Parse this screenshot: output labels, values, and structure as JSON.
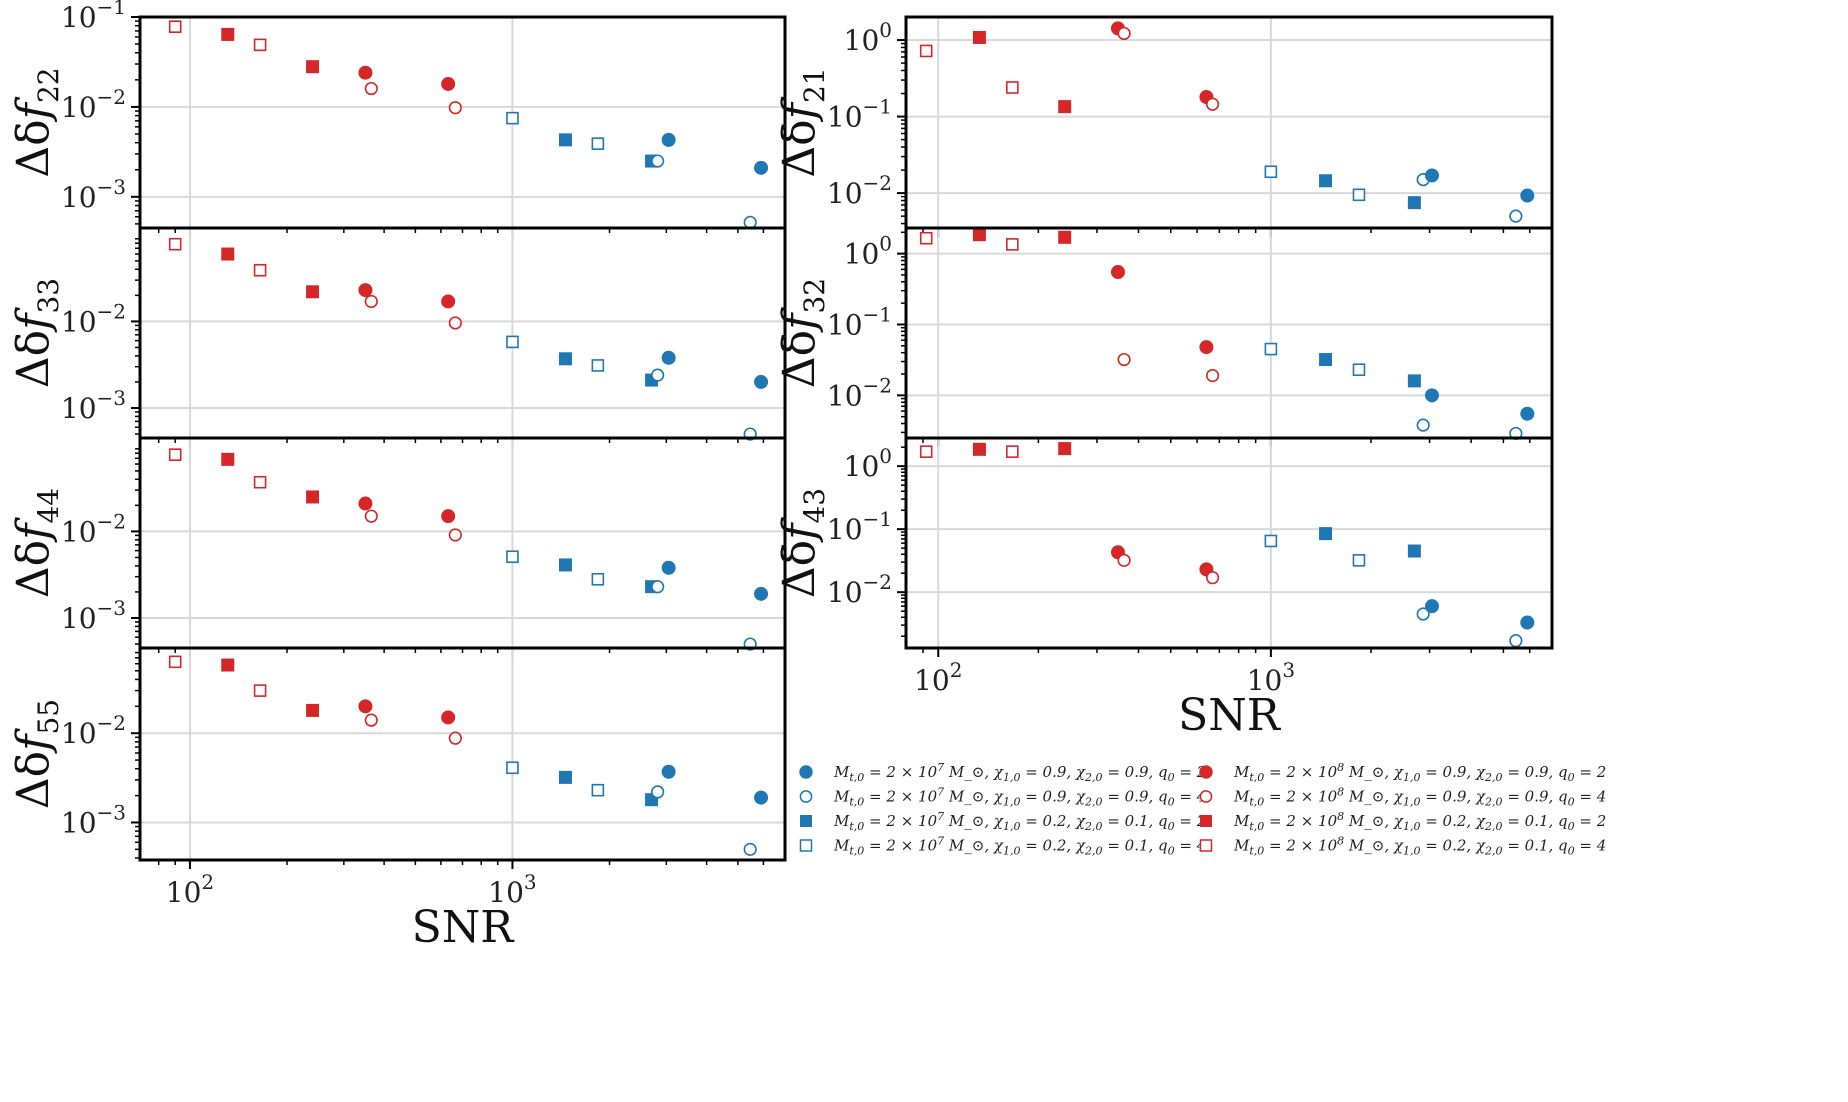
{
  "figure": {
    "xlabel": "SNR",
    "xlim": [
      70,
      7000
    ],
    "xticks": [
      {
        "value": 100,
        "base": "10",
        "exp": "2"
      },
      {
        "value": 1000,
        "base": "10",
        "exp": "3"
      }
    ]
  },
  "styles": {
    "blue-circle-filled": {
      "color": "#1f77b4",
      "marker": "circle",
      "filled": true
    },
    "blue-circle-open": {
      "color": "#1f77b4",
      "marker": "circle",
      "filled": false
    },
    "blue-square-filled": {
      "color": "#1f77b4",
      "marker": "square",
      "filled": true
    },
    "blue-square-open": {
      "color": "#1f77b4",
      "marker": "square",
      "filled": false
    },
    "red-circle-filled": {
      "color": "#d62728",
      "marker": "circle",
      "filled": true
    },
    "red-circle-open": {
      "color": "#d62728",
      "marker": "circle",
      "filled": false
    },
    "red-square-filled": {
      "color": "#d62728",
      "marker": "square",
      "filled": true
    },
    "red-square-open": {
      "color": "#d62728",
      "marker": "square",
      "filled": false
    }
  },
  "legend": [
    {
      "style": "blue-circle-filled",
      "label": "M_{t,0} = 2 × 10^7 M_⊙,  χ_{1,0} = 0.9,  χ_{2,0} = 0.9,  q_0 = 2"
    },
    {
      "style": "blue-circle-open",
      "label": "M_{t,0} = 2 × 10^7 M_⊙,  χ_{1,0} = 0.9,  χ_{2,0} = 0.9,  q_0 = 4"
    },
    {
      "style": "blue-square-filled",
      "label": "M_{t,0} = 2 × 10^7 M_⊙,  χ_{1,0} = 0.2,  χ_{2,0} = 0.1,  q_0 = 2"
    },
    {
      "style": "blue-square-open",
      "label": "M_{t,0} = 2 × 10^7 M_⊙,  χ_{1,0} = 0.2,  χ_{2,0} = 0.1,  q_0 = 4"
    },
    {
      "style": "red-circle-filled",
      "label": "M_{t,0} = 2 × 10^8 M_⊙,  χ_{1,0} = 0.9,  χ_{2,0} = 0.9,  q_0 = 2"
    },
    {
      "style": "red-circle-open",
      "label": "M_{t,0} = 2 × 10^8 M_⊙,  χ_{1,0} = 0.9,  χ_{2,0} = 0.9,  q_0 = 4"
    },
    {
      "style": "red-square-filled",
      "label": "M_{t,0} = 2 × 10^8 M_⊙,  χ_{1,0} = 0.2,  χ_{2,0} = 0.1,  q_0 = 2"
    },
    {
      "style": "red-square-open",
      "label": "M_{t,0} = 2 × 10^8 M_⊙,  χ_{1,0} = 0.2,  χ_{2,0} = 0.1,  q_0 = 4"
    }
  ],
  "chart_data": [
    {
      "type": "scatter",
      "panel": "22",
      "ylabel": "Δδf_22",
      "ylabel_sub": "22",
      "xscale": "log",
      "yscale": "log",
      "xlim": [
        70,
        7000
      ],
      "ylim": [
        0.00045,
        0.1
      ],
      "yticks": [
        {
          "value": 0.1,
          "exp": "−1"
        },
        {
          "value": 0.01,
          "exp": "−2"
        },
        {
          "value": 0.001,
          "exp": "−3"
        }
      ],
      "points": [
        {
          "style": "red-square-open",
          "x": 90,
          "y": 0.078
        },
        {
          "style": "red-square-filled",
          "x": 131,
          "y": 0.064
        },
        {
          "style": "red-square-open",
          "x": 165,
          "y": 0.049
        },
        {
          "style": "red-square-filled",
          "x": 240,
          "y": 0.028
        },
        {
          "style": "red-circle-filled",
          "x": 350,
          "y": 0.024
        },
        {
          "style": "red-circle-open",
          "x": 365,
          "y": 0.016
        },
        {
          "style": "red-circle-filled",
          "x": 632,
          "y": 0.018
        },
        {
          "style": "red-circle-open",
          "x": 665,
          "y": 0.0098
        },
        {
          "style": "blue-square-open",
          "x": 1000,
          "y": 0.0075
        },
        {
          "style": "blue-square-filled",
          "x": 1460,
          "y": 0.0043
        },
        {
          "style": "blue-square-open",
          "x": 1840,
          "y": 0.0039
        },
        {
          "style": "blue-square-filled",
          "x": 2700,
          "y": 0.0025
        },
        {
          "style": "blue-circle-open",
          "x": 2820,
          "y": 0.0025
        },
        {
          "style": "blue-circle-filled",
          "x": 3050,
          "y": 0.0043
        },
        {
          "style": "blue-circle-open",
          "x": 5460,
          "y": 0.00052
        },
        {
          "style": "blue-circle-filled",
          "x": 5900,
          "y": 0.0021
        }
      ]
    },
    {
      "type": "scatter",
      "panel": "33",
      "ylabel": "Δδf_33",
      "ylabel_sub": "33",
      "xscale": "log",
      "yscale": "log",
      "xlim": [
        70,
        7000
      ],
      "ylim": [
        0.00045,
        0.12
      ],
      "yticks": [
        {
          "value": 0.01,
          "exp": "−2"
        },
        {
          "value": 0.001,
          "exp": "−3"
        }
      ],
      "points": [
        {
          "style": "red-square-open",
          "x": 90,
          "y": 0.078
        },
        {
          "style": "red-square-filled",
          "x": 131,
          "y": 0.06
        },
        {
          "style": "red-square-open",
          "x": 165,
          "y": 0.039
        },
        {
          "style": "red-square-filled",
          "x": 240,
          "y": 0.022
        },
        {
          "style": "red-circle-filled",
          "x": 350,
          "y": 0.023
        },
        {
          "style": "red-circle-open",
          "x": 365,
          "y": 0.017
        },
        {
          "style": "red-circle-filled",
          "x": 632,
          "y": 0.017
        },
        {
          "style": "red-circle-open",
          "x": 665,
          "y": 0.0096
        },
        {
          "style": "blue-square-open",
          "x": 1000,
          "y": 0.0058
        },
        {
          "style": "blue-square-filled",
          "x": 1460,
          "y": 0.0037
        },
        {
          "style": "blue-square-open",
          "x": 1840,
          "y": 0.0031
        },
        {
          "style": "blue-square-filled",
          "x": 2700,
          "y": 0.0021
        },
        {
          "style": "blue-circle-open",
          "x": 2820,
          "y": 0.0024
        },
        {
          "style": "blue-circle-filled",
          "x": 3050,
          "y": 0.0038
        },
        {
          "style": "blue-circle-open",
          "x": 5460,
          "y": 0.0005
        },
        {
          "style": "blue-circle-filled",
          "x": 5900,
          "y": 0.002
        }
      ]
    },
    {
      "type": "scatter",
      "panel": "44",
      "ylabel": "Δδf_44",
      "ylabel_sub": "44",
      "xscale": "log",
      "yscale": "log",
      "xlim": [
        70,
        7000
      ],
      "ylim": [
        0.00045,
        0.12
      ],
      "yticks": [
        {
          "value": 0.01,
          "exp": "−2"
        },
        {
          "value": 0.001,
          "exp": "−3"
        }
      ],
      "points": [
        {
          "style": "red-square-open",
          "x": 90,
          "y": 0.077
        },
        {
          "style": "red-square-filled",
          "x": 131,
          "y": 0.068
        },
        {
          "style": "red-square-open",
          "x": 165,
          "y": 0.037
        },
        {
          "style": "red-square-filled",
          "x": 240,
          "y": 0.025
        },
        {
          "style": "red-circle-filled",
          "x": 350,
          "y": 0.021
        },
        {
          "style": "red-circle-open",
          "x": 365,
          "y": 0.015
        },
        {
          "style": "red-circle-filled",
          "x": 632,
          "y": 0.015
        },
        {
          "style": "red-circle-open",
          "x": 665,
          "y": 0.0091
        },
        {
          "style": "blue-square-open",
          "x": 1000,
          "y": 0.0051
        },
        {
          "style": "blue-square-filled",
          "x": 1460,
          "y": 0.0041
        },
        {
          "style": "blue-square-open",
          "x": 1840,
          "y": 0.0028
        },
        {
          "style": "blue-square-filled",
          "x": 2700,
          "y": 0.0023
        },
        {
          "style": "blue-circle-open",
          "x": 2820,
          "y": 0.0023
        },
        {
          "style": "blue-circle-filled",
          "x": 3050,
          "y": 0.0038
        },
        {
          "style": "blue-circle-open",
          "x": 5460,
          "y": 0.0005
        },
        {
          "style": "blue-circle-filled",
          "x": 5900,
          "y": 0.0019
        }
      ]
    },
    {
      "type": "scatter",
      "panel": "55",
      "ylabel": "Δδf_55",
      "ylabel_sub": "55",
      "xscale": "log",
      "yscale": "log",
      "xlim": [
        70,
        7000
      ],
      "ylim": [
        0.00038,
        0.09
      ],
      "yticks": [
        {
          "value": 0.01,
          "exp": "−2"
        },
        {
          "value": 0.001,
          "exp": "−3"
        }
      ],
      "points": [
        {
          "style": "red-square-open",
          "x": 90,
          "y": 0.063
        },
        {
          "style": "red-square-filled",
          "x": 131,
          "y": 0.058
        },
        {
          "style": "red-square-open",
          "x": 165,
          "y": 0.03
        },
        {
          "style": "red-square-filled",
          "x": 240,
          "y": 0.018
        },
        {
          "style": "red-circle-filled",
          "x": 350,
          "y": 0.02
        },
        {
          "style": "red-circle-open",
          "x": 365,
          "y": 0.014
        },
        {
          "style": "red-circle-filled",
          "x": 632,
          "y": 0.015
        },
        {
          "style": "red-circle-open",
          "x": 665,
          "y": 0.0088
        },
        {
          "style": "blue-square-open",
          "x": 1000,
          "y": 0.0041
        },
        {
          "style": "blue-square-filled",
          "x": 1460,
          "y": 0.0032
        },
        {
          "style": "blue-square-open",
          "x": 1840,
          "y": 0.0023
        },
        {
          "style": "blue-square-filled",
          "x": 2700,
          "y": 0.0018
        },
        {
          "style": "blue-circle-open",
          "x": 2820,
          "y": 0.0022
        },
        {
          "style": "blue-circle-filled",
          "x": 3050,
          "y": 0.0037
        },
        {
          "style": "blue-circle-open",
          "x": 5460,
          "y": 0.0005
        },
        {
          "style": "blue-circle-filled",
          "x": 5900,
          "y": 0.0019
        }
      ]
    },
    {
      "type": "scatter",
      "panel": "21",
      "ylabel": "Δδf_21",
      "ylabel_sub": "21",
      "xscale": "log",
      "yscale": "log",
      "xlim": [
        80,
        7000
      ],
      "ylim": [
        0.0035,
        2.0
      ],
      "yticks": [
        {
          "value": 1,
          "exp": "0"
        },
        {
          "value": 0.1,
          "exp": "−1"
        },
        {
          "value": 0.01,
          "exp": "−2"
        }
      ],
      "points": [
        {
          "style": "red-square-open",
          "x": 92,
          "y": 0.72
        },
        {
          "style": "red-square-filled",
          "x": 133,
          "y": 1.08
        },
        {
          "style": "red-square-open",
          "x": 167,
          "y": 0.24
        },
        {
          "style": "red-square-filled",
          "x": 240,
          "y": 0.135
        },
        {
          "style": "red-circle-filled",
          "x": 347,
          "y": 1.42
        },
        {
          "style": "red-circle-open",
          "x": 362,
          "y": 1.22
        },
        {
          "style": "red-circle-filled",
          "x": 640,
          "y": 0.18
        },
        {
          "style": "red-circle-open",
          "x": 668,
          "y": 0.145
        },
        {
          "style": "blue-square-open",
          "x": 1000,
          "y": 0.019
        },
        {
          "style": "blue-square-filled",
          "x": 1460,
          "y": 0.0145
        },
        {
          "style": "blue-square-open",
          "x": 1840,
          "y": 0.0095
        },
        {
          "style": "blue-square-filled",
          "x": 2700,
          "y": 0.0075
        },
        {
          "style": "blue-circle-open",
          "x": 2870,
          "y": 0.015
        },
        {
          "style": "blue-circle-filled",
          "x": 3050,
          "y": 0.017
        },
        {
          "style": "blue-circle-open",
          "x": 5450,
          "y": 0.005
        },
        {
          "style": "blue-circle-filled",
          "x": 5900,
          "y": 0.0093
        }
      ]
    },
    {
      "type": "scatter",
      "panel": "32",
      "ylabel": "Δδf_32",
      "ylabel_sub": "32",
      "xscale": "log",
      "yscale": "log",
      "xlim": [
        80,
        7000
      ],
      "ylim": [
        0.0025,
        2.3
      ],
      "yticks": [
        {
          "value": 1,
          "exp": "0"
        },
        {
          "value": 0.1,
          "exp": "−1"
        },
        {
          "value": 0.01,
          "exp": "−2"
        }
      ],
      "points": [
        {
          "style": "red-square-open",
          "x": 92,
          "y": 1.65
        },
        {
          "style": "red-square-filled",
          "x": 133,
          "y": 1.85
        },
        {
          "style": "red-square-open",
          "x": 167,
          "y": 1.35
        },
        {
          "style": "red-square-filled",
          "x": 240,
          "y": 1.7
        },
        {
          "style": "red-circle-filled",
          "x": 347,
          "y": 0.55
        },
        {
          "style": "red-circle-open",
          "x": 362,
          "y": 0.032
        },
        {
          "style": "red-circle-filled",
          "x": 640,
          "y": 0.048
        },
        {
          "style": "red-circle-open",
          "x": 668,
          "y": 0.019
        },
        {
          "style": "blue-square-open",
          "x": 1000,
          "y": 0.045
        },
        {
          "style": "blue-square-filled",
          "x": 1460,
          "y": 0.032
        },
        {
          "style": "blue-square-open",
          "x": 1840,
          "y": 0.023
        },
        {
          "style": "blue-square-filled",
          "x": 2700,
          "y": 0.016
        },
        {
          "style": "blue-circle-open",
          "x": 2870,
          "y": 0.0038
        },
        {
          "style": "blue-circle-filled",
          "x": 3050,
          "y": 0.01
        },
        {
          "style": "blue-circle-open",
          "x": 5450,
          "y": 0.0029
        },
        {
          "style": "blue-circle-filled",
          "x": 5900,
          "y": 0.0055
        }
      ]
    },
    {
      "type": "scatter",
      "panel": "43",
      "ylabel": "Δδf_43",
      "ylabel_sub": "43",
      "xscale": "log",
      "yscale": "log",
      "xlim": [
        80,
        7000
      ],
      "ylim": [
        0.0013,
        2.8
      ],
      "yticks": [
        {
          "value": 1,
          "exp": "0"
        },
        {
          "value": 0.1,
          "exp": "−1"
        },
        {
          "value": 0.01,
          "exp": "−2"
        }
      ],
      "points": [
        {
          "style": "red-square-open",
          "x": 92,
          "y": 1.7
        },
        {
          "style": "red-square-filled",
          "x": 133,
          "y": 1.85
        },
        {
          "style": "red-square-open",
          "x": 167,
          "y": 1.7
        },
        {
          "style": "red-square-filled",
          "x": 240,
          "y": 1.9
        },
        {
          "style": "red-circle-filled",
          "x": 347,
          "y": 0.043
        },
        {
          "style": "red-circle-open",
          "x": 362,
          "y": 0.032
        },
        {
          "style": "red-circle-filled",
          "x": 640,
          "y": 0.023
        },
        {
          "style": "red-circle-open",
          "x": 668,
          "y": 0.017
        },
        {
          "style": "blue-square-open",
          "x": 1000,
          "y": 0.065
        },
        {
          "style": "blue-square-filled",
          "x": 1460,
          "y": 0.085
        },
        {
          "style": "blue-square-open",
          "x": 1840,
          "y": 0.032
        },
        {
          "style": "blue-square-filled",
          "x": 2700,
          "y": 0.045
        },
        {
          "style": "blue-circle-open",
          "x": 2870,
          "y": 0.0045
        },
        {
          "style": "blue-circle-filled",
          "x": 3050,
          "y": 0.006
        },
        {
          "style": "blue-circle-open",
          "x": 5450,
          "y": 0.0017
        },
        {
          "style": "blue-circle-filled",
          "x": 5900,
          "y": 0.0033
        }
      ]
    }
  ]
}
